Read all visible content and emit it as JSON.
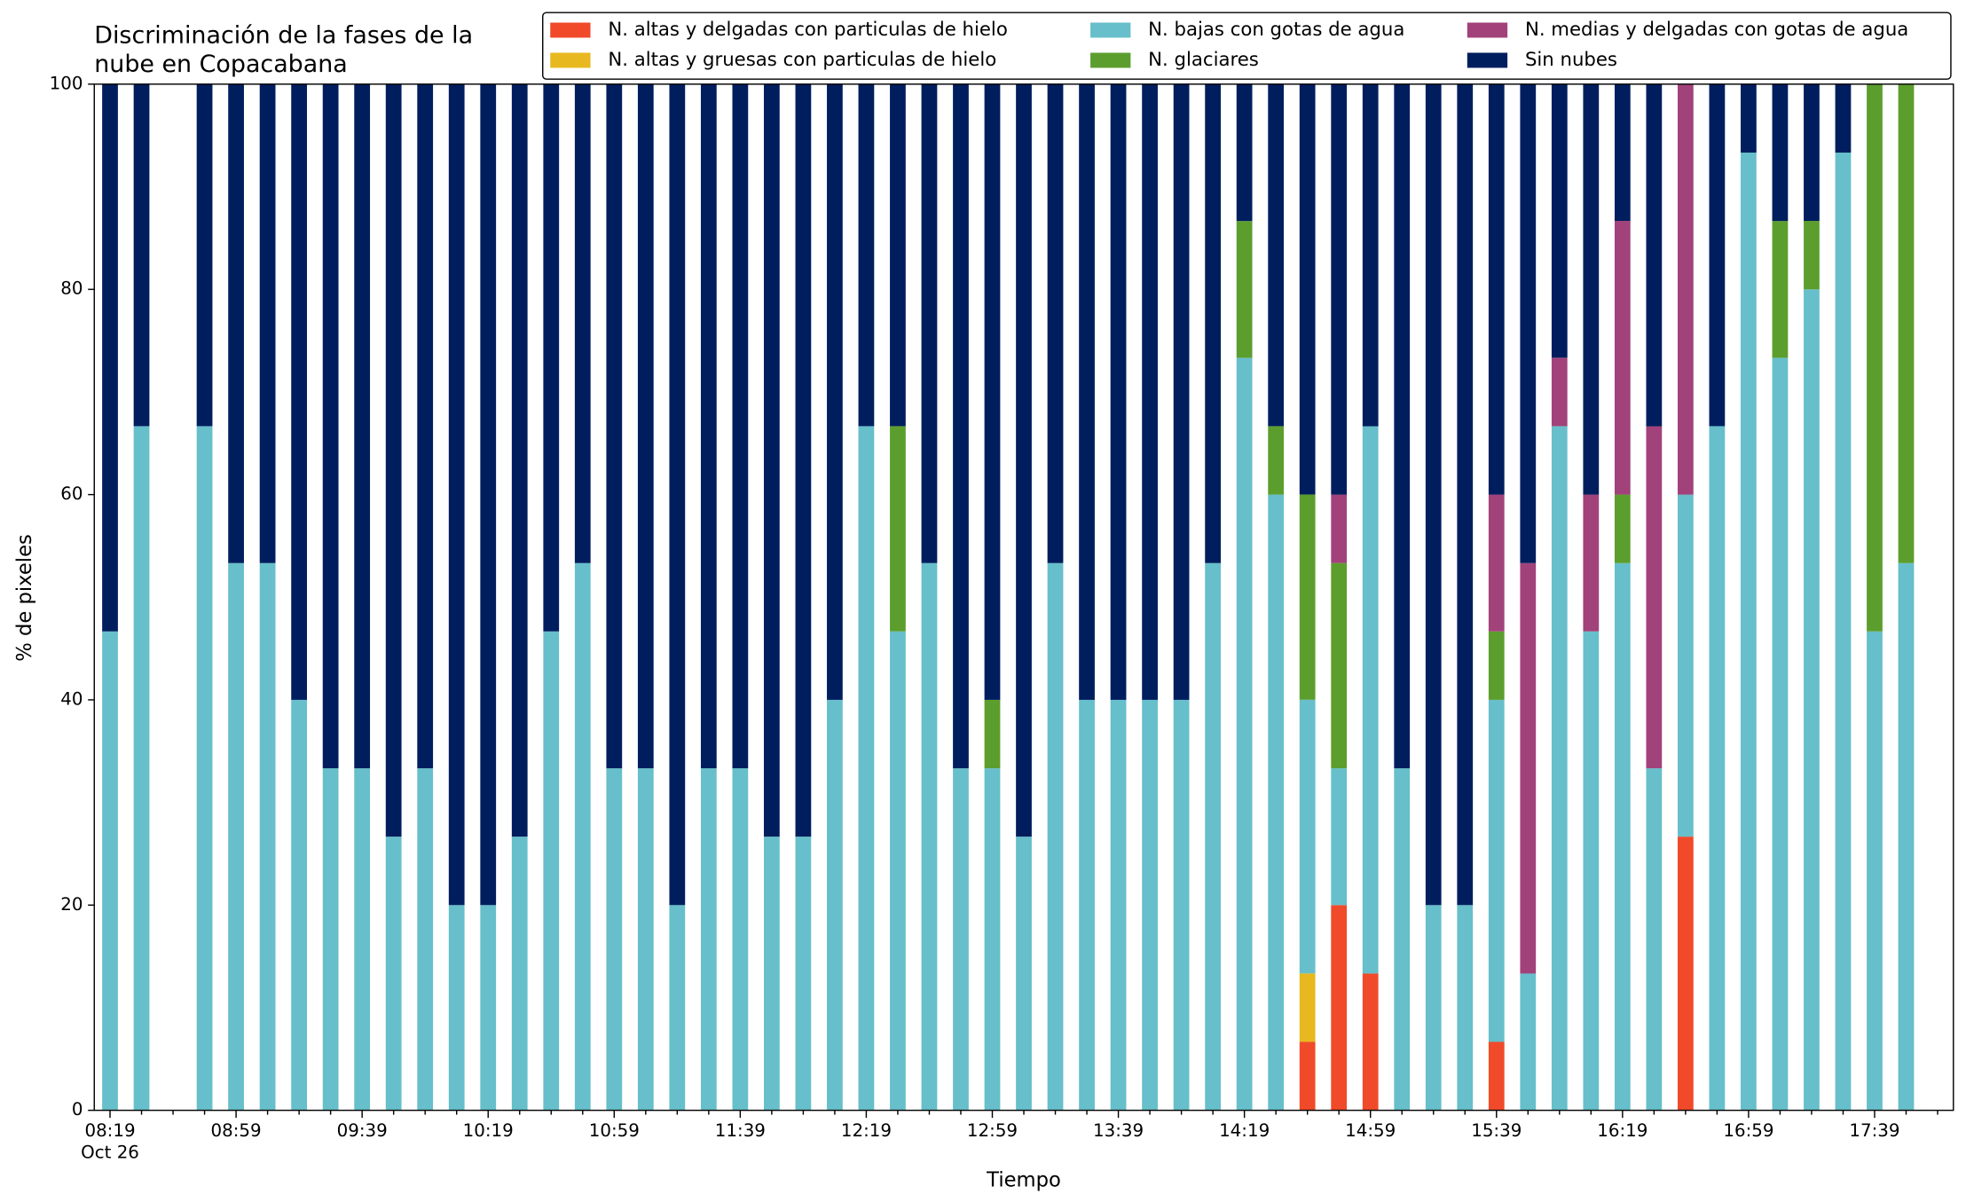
{
  "chart_data": {
    "type": "stacked_bar",
    "title": [
      "Discriminación de la fases de la",
      "nube en Copacabana"
    ],
    "xlabel": "Tiempo",
    "ylabel": "% de pixeles",
    "x_sublabel": "Oct 26",
    "categories": [
      "08:19",
      null,
      null,
      null,
      "08:59",
      null,
      null,
      null,
      "09:39",
      null,
      null,
      null,
      "10:19",
      null,
      null,
      null,
      "10:59",
      null,
      null,
      null,
      "11:39",
      null,
      null,
      null,
      "12:19",
      null,
      null,
      null,
      "12:59",
      null,
      null,
      null,
      "13:39",
      null,
      null,
      null,
      "14:19",
      null,
      null,
      null,
      "14:59",
      null,
      null,
      null,
      "15:39",
      null,
      null,
      null,
      "16:19",
      null,
      null,
      null,
      "16:59",
      null,
      null,
      null,
      "17:39",
      null
    ],
    "ylim": [
      0,
      100
    ],
    "yticks": [
      0,
      20,
      40,
      60,
      80,
      100
    ],
    "legend_position": "upper right",
    "legend_columns": 3,
    "series": [
      {
        "name": "N. altas y delgadas con particulas de hielo",
        "color": "#f04a2a",
        "values": [
          0,
          0,
          0,
          0,
          0,
          0,
          0,
          0,
          0,
          0,
          0,
          0,
          0,
          0,
          0,
          0,
          0,
          0,
          0,
          0,
          0,
          0,
          0,
          0,
          0,
          0,
          0,
          0,
          0,
          0,
          0,
          0,
          0,
          0,
          0,
          0,
          0,
          0,
          6.67,
          20,
          13.33,
          0,
          0,
          0,
          6.67,
          0,
          0,
          0,
          0,
          0,
          26.67,
          0,
          0,
          0,
          0,
          0,
          0,
          0
        ]
      },
      {
        "name": "N. altas y gruesas con particulas de hielo",
        "color": "#e8b820",
        "values": [
          0,
          0,
          0,
          0,
          0,
          0,
          0,
          0,
          0,
          0,
          0,
          0,
          0,
          0,
          0,
          0,
          0,
          0,
          0,
          0,
          0,
          0,
          0,
          0,
          0,
          0,
          0,
          0,
          0,
          0,
          0,
          0,
          0,
          0,
          0,
          0,
          0,
          0,
          6.67,
          0,
          0,
          0,
          0,
          0,
          0,
          0,
          0,
          0,
          0,
          0,
          0,
          0,
          0,
          0,
          0,
          0,
          0,
          0
        ]
      },
      {
        "name": "N. bajas con gotas de agua",
        "color": "#66bfca",
        "values": [
          46.67,
          66.67,
          0,
          66.67,
          53.33,
          53.33,
          40,
          33.33,
          33.33,
          26.67,
          33.33,
          20,
          20,
          26.67,
          46.67,
          53.33,
          33.33,
          33.33,
          20,
          33.33,
          33.33,
          26.67,
          26.67,
          40,
          66.67,
          46.67,
          53.33,
          33.33,
          33.33,
          26.67,
          53.33,
          40,
          40,
          40,
          40,
          53.33,
          73.33,
          60,
          26.67,
          13.33,
          53.33,
          33.33,
          20,
          20,
          33.33,
          13.33,
          66.67,
          46.67,
          53.33,
          33.33,
          33.33,
          66.67,
          93.33,
          73.33,
          80,
          93.33,
          46.67,
          53.33
        ]
      },
      {
        "name": "N. glaciares",
        "color": "#5c9e2e",
        "values": [
          0,
          0,
          0,
          0,
          0,
          0,
          0,
          0,
          0,
          0,
          0,
          0,
          0,
          0,
          0,
          0,
          0,
          0,
          0,
          0,
          0,
          0,
          0,
          0,
          0,
          20,
          0,
          0,
          6.67,
          0,
          0,
          0,
          0,
          0,
          0,
          0,
          13.33,
          6.67,
          20,
          20,
          0,
          0,
          0,
          0,
          6.67,
          0,
          0,
          0,
          6.67,
          0,
          0,
          0,
          0,
          13.33,
          6.67,
          0,
          53.33,
          46.67
        ]
      },
      {
        "name": "N. medias y delgadas con gotas de agua",
        "color": "#a2427a",
        "values": [
          0,
          0,
          0,
          0,
          0,
          0,
          0,
          0,
          0,
          0,
          0,
          0,
          0,
          0,
          0,
          0,
          0,
          0,
          0,
          0,
          0,
          0,
          0,
          0,
          0,
          0,
          0,
          0,
          0,
          0,
          0,
          0,
          0,
          0,
          0,
          0,
          0,
          0,
          0,
          6.67,
          0,
          0,
          0,
          0,
          13.33,
          40,
          6.67,
          13.33,
          26.67,
          33.33,
          40,
          0,
          0,
          0,
          0,
          0,
          0,
          0
        ]
      },
      {
        "name": "Sin nubes",
        "color": "#001e5e",
        "values": [
          53.33,
          33.33,
          0,
          33.33,
          46.67,
          46.67,
          60,
          66.67,
          66.67,
          73.33,
          66.67,
          80,
          80,
          73.33,
          53.33,
          46.67,
          66.67,
          66.67,
          80,
          66.67,
          66.67,
          73.33,
          73.33,
          60,
          33.33,
          33.33,
          46.67,
          66.67,
          60,
          73.33,
          46.67,
          60,
          60,
          60,
          60,
          46.67,
          13.33,
          33.33,
          40,
          40,
          33.33,
          66.67,
          80,
          80,
          40,
          46.67,
          26.67,
          40,
          13.33,
          33.33,
          0,
          33.33,
          6.67,
          13.33,
          13.33,
          6.67,
          0,
          0
        ]
      }
    ]
  }
}
